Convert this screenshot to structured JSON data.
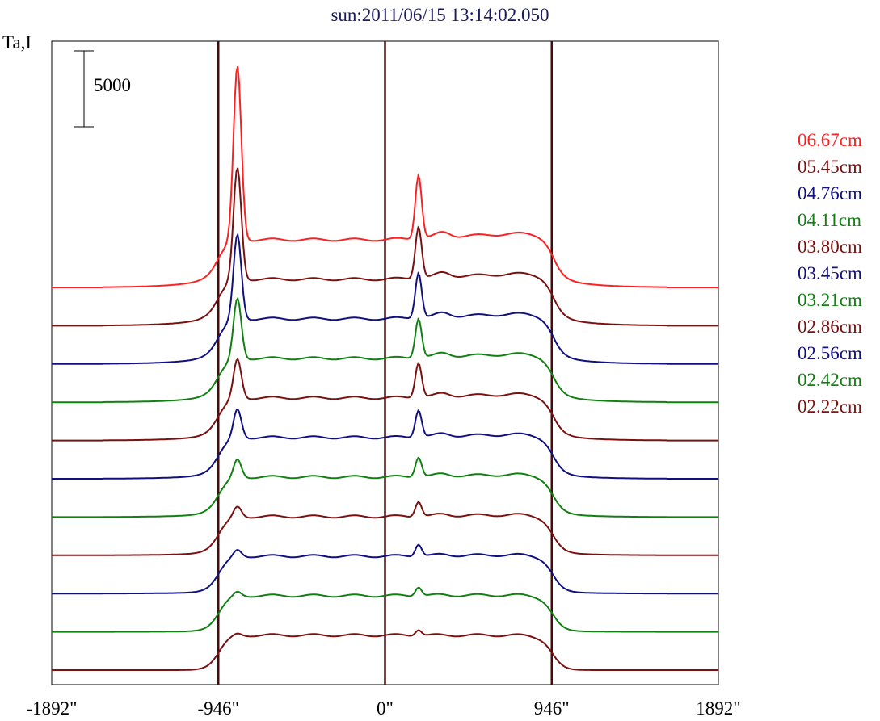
{
  "chart_data": {
    "type": "line",
    "title": "sun:2011/06/15 13:14:02.050",
    "ylabel": "Ta,I",
    "scale_bar_label": "5000",
    "scale_bar_value": 5000,
    "x_ticks": [
      {
        "value": -1892,
        "label": "-1892\""
      },
      {
        "value": -946,
        "label": "-946\""
      },
      {
        "value": 0,
        "label": "0\""
      },
      {
        "value": 946,
        "label": "946\""
      },
      {
        "value": 1892,
        "label": "1892\""
      }
    ],
    "xlim": [
      -1892,
      1892
    ],
    "vertical_lines_at": [
      -946,
      0,
      946
    ],
    "series": [
      {
        "name": "06.67cm",
        "color": "#ff2020",
        "peak_left": 11500,
        "peak_right": 4200
      },
      {
        "name": "05.45cm",
        "color": "#7a1010",
        "peak_left": 7400,
        "peak_right": 3400
      },
      {
        "name": "04.76cm",
        "color": "#101080",
        "peak_left": 5600,
        "peak_right": 3000
      },
      {
        "name": "04.11cm",
        "color": "#108010",
        "peak_left": 4000,
        "peak_right": 2600
      },
      {
        "name": "03.80cm",
        "color": "#7a1010",
        "peak_left": 2600,
        "peak_right": 2300
      },
      {
        "name": "03.45cm",
        "color": "#101080",
        "peak_left": 1900,
        "peak_right": 1800
      },
      {
        "name": "03.21cm",
        "color": "#108010",
        "peak_left": 1200,
        "peak_right": 1300
      },
      {
        "name": "02.86cm",
        "color": "#7a1010",
        "peak_left": 700,
        "peak_right": 1000
      },
      {
        "name": "02.56cm",
        "color": "#101080",
        "peak_left": 450,
        "peak_right": 800
      },
      {
        "name": "02.42cm",
        "color": "#108010",
        "peak_left": 300,
        "peak_right": 600
      },
      {
        "name": "02.22cm",
        "color": "#7a1010",
        "peak_left": 150,
        "peak_right": 400
      }
    ]
  }
}
